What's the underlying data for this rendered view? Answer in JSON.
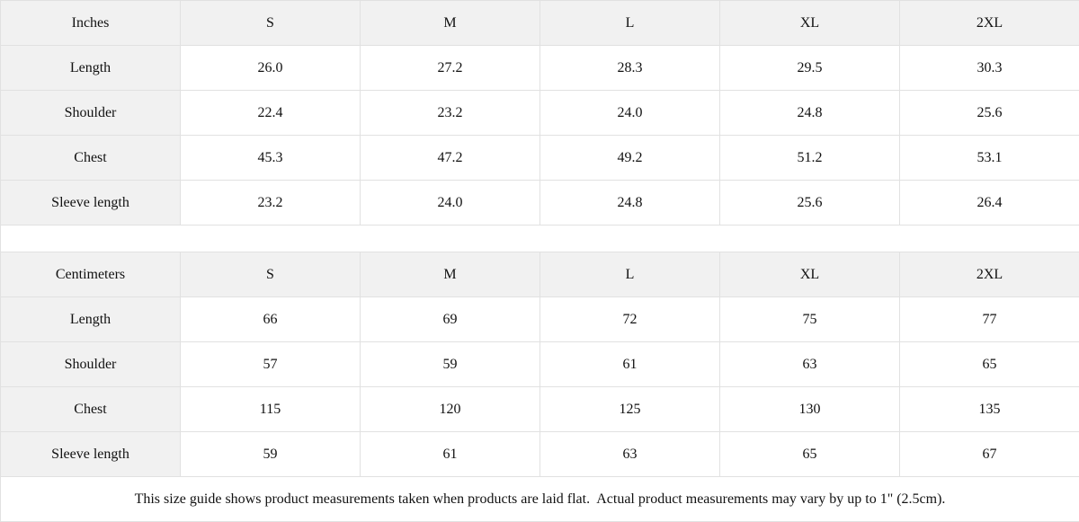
{
  "colors": {
    "header_bg": "#f1f1f1",
    "cell_bg": "#ffffff",
    "border": "#e1e1e1",
    "text": "#111111"
  },
  "chart_data": [
    {
      "type": "table",
      "title": "Inches",
      "columns": [
        "Inches",
        "S",
        "M",
        "L",
        "XL",
        "2XL"
      ],
      "rows": [
        [
          "Length",
          "26.0",
          "27.2",
          "28.3",
          "29.5",
          "30.3"
        ],
        [
          "Shoulder",
          "22.4",
          "23.2",
          "24.0",
          "24.8",
          "25.6"
        ],
        [
          "Chest",
          "45.3",
          "47.2",
          "49.2",
          "51.2",
          "53.1"
        ],
        [
          "Sleeve length",
          "23.2",
          "24.0",
          "24.8",
          "25.6",
          "26.4"
        ]
      ]
    },
    {
      "type": "table",
      "title": "Centimeters",
      "columns": [
        "Centimeters",
        "S",
        "M",
        "L",
        "XL",
        "2XL"
      ],
      "rows": [
        [
          "Length",
          "66",
          "69",
          "72",
          "75",
          "77"
        ],
        [
          "Shoulder",
          "57",
          "59",
          "61",
          "63",
          "65"
        ],
        [
          "Chest",
          "115",
          "120",
          "125",
          "130",
          "135"
        ],
        [
          "Sleeve length",
          "59",
          "61",
          "63",
          "65",
          "67"
        ]
      ]
    }
  ],
  "size_tables": [
    {
      "unit_label": "Inches",
      "sizes": [
        "S",
        "M",
        "L",
        "XL",
        "2XL"
      ],
      "rows": [
        {
          "label": "Length",
          "values": [
            "26.0",
            "27.2",
            "28.3",
            "29.5",
            "30.3"
          ]
        },
        {
          "label": "Shoulder",
          "values": [
            "22.4",
            "23.2",
            "24.0",
            "24.8",
            "25.6"
          ]
        },
        {
          "label": "Chest",
          "values": [
            "45.3",
            "47.2",
            "49.2",
            "51.2",
            "53.1"
          ]
        },
        {
          "label": "Sleeve length",
          "values": [
            "23.2",
            "24.0",
            "24.8",
            "25.6",
            "26.4"
          ]
        }
      ]
    },
    {
      "unit_label": "Centimeters",
      "sizes": [
        "S",
        "M",
        "L",
        "XL",
        "2XL"
      ],
      "rows": [
        {
          "label": "Length",
          "values": [
            "66",
            "69",
            "72",
            "75",
            "77"
          ]
        },
        {
          "label": "Shoulder",
          "values": [
            "57",
            "59",
            "61",
            "63",
            "65"
          ]
        },
        {
          "label": "Chest",
          "values": [
            "115",
            "120",
            "125",
            "130",
            "135"
          ]
        },
        {
          "label": "Sleeve length",
          "values": [
            "59",
            "61",
            "63",
            "65",
            "67"
          ]
        }
      ]
    }
  ],
  "footnote": "This size guide shows product measurements taken when products are laid flat.  Actual product measurements may vary by up to 1\" (2.5cm)."
}
